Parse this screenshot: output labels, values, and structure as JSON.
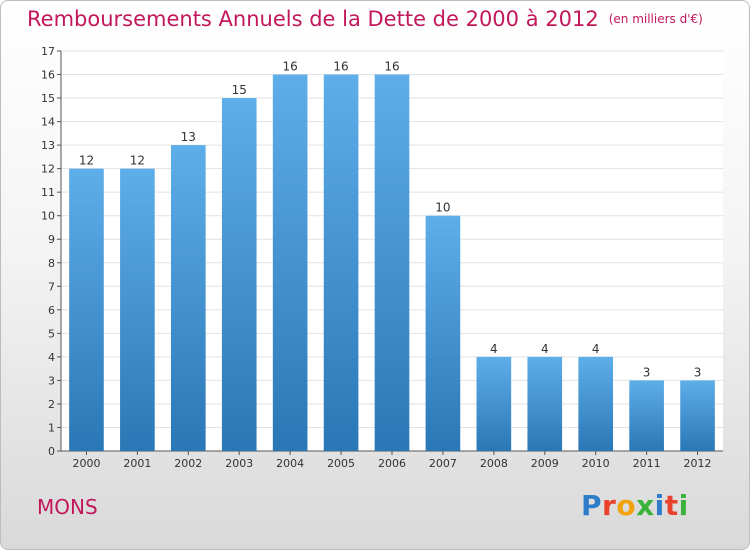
{
  "title": "Remboursements Annuels de la Dette de 2000 à 2012",
  "unit": "(en milliers d'€)",
  "commune": "MONS",
  "logo": {
    "letters": [
      "P",
      "r",
      "o",
      "x",
      "i",
      "t",
      "i"
    ],
    "colors": [
      "#2f7dc9",
      "#e8412c",
      "#f2a20d",
      "#3bb23b",
      "#2f7dc9",
      "#e8412c",
      "#3bb23b"
    ]
  },
  "colors": {
    "accent": "#c2185b",
    "bar_top": "#5eaeea",
    "bar_bottom": "#2a77b6"
  },
  "chart_data": {
    "type": "bar",
    "categories": [
      "2000",
      "2001",
      "2002",
      "2003",
      "2004",
      "2005",
      "2006",
      "2007",
      "2008",
      "2009",
      "2010",
      "2011",
      "2012"
    ],
    "values": [
      12,
      12,
      13,
      15,
      16,
      16,
      16,
      10,
      4,
      4,
      4,
      3,
      3
    ],
    "ylim": [
      0,
      17
    ],
    "yticks": [
      0,
      1,
      2,
      3,
      4,
      5,
      6,
      7,
      8,
      9,
      10,
      11,
      12,
      13,
      14,
      15,
      16,
      17
    ],
    "grid": true
  }
}
